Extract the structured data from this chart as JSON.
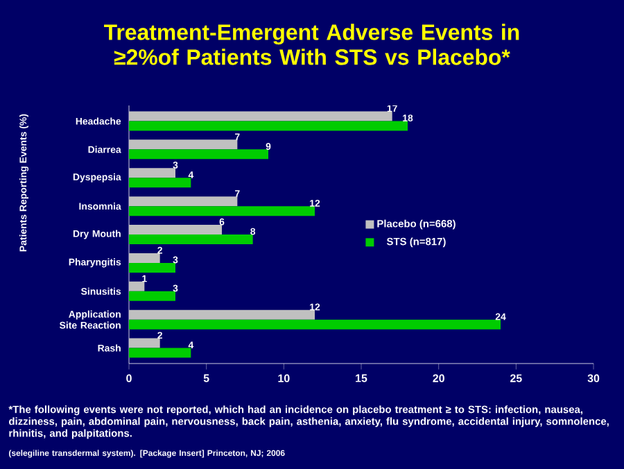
{
  "chart_data": {
    "type": "bar",
    "orientation": "horizontal",
    "title": "Treatment-Emergent Adverse Events in ≥2%of Patients With STS vs Placebo*",
    "ylabel": "Patients Reporting Events (%)",
    "categories": [
      "Headache",
      "Diarrea",
      "Dyspepsia",
      "Insomnia",
      "Dry Mouth",
      "Pharyngitis",
      "Sinusitis",
      "Application Site Reaction",
      "Rash"
    ],
    "series": [
      {
        "name": "Placebo (n=668)",
        "color": "#c0c0c0",
        "values": [
          17,
          7,
          3,
          7,
          6,
          2,
          1,
          12,
          2
        ]
      },
      {
        "name": "STS (n=817)",
        "color": "#00cc00",
        "values": [
          18,
          9,
          4,
          12,
          8,
          3,
          3,
          24,
          4
        ]
      }
    ],
    "xlim": [
      0,
      30
    ],
    "xticks": [
      0,
      5,
      10,
      15,
      20,
      25,
      30
    ],
    "data_labels": true,
    "legend": "right",
    "annotations": [
      "*The following events were not reported, which had an incidence on placebo treatment ≥ to STS: infection, nausea, dizziness, pain, abdominal pain, nervousness, back pain, asthenia, anxiety, flu syndrome, accidental injury, somnolence, rhinitis, and palpitations.",
      "(selegiline transdermal system). [Package Insert] Princeton, NJ; 2006"
    ]
  }
}
